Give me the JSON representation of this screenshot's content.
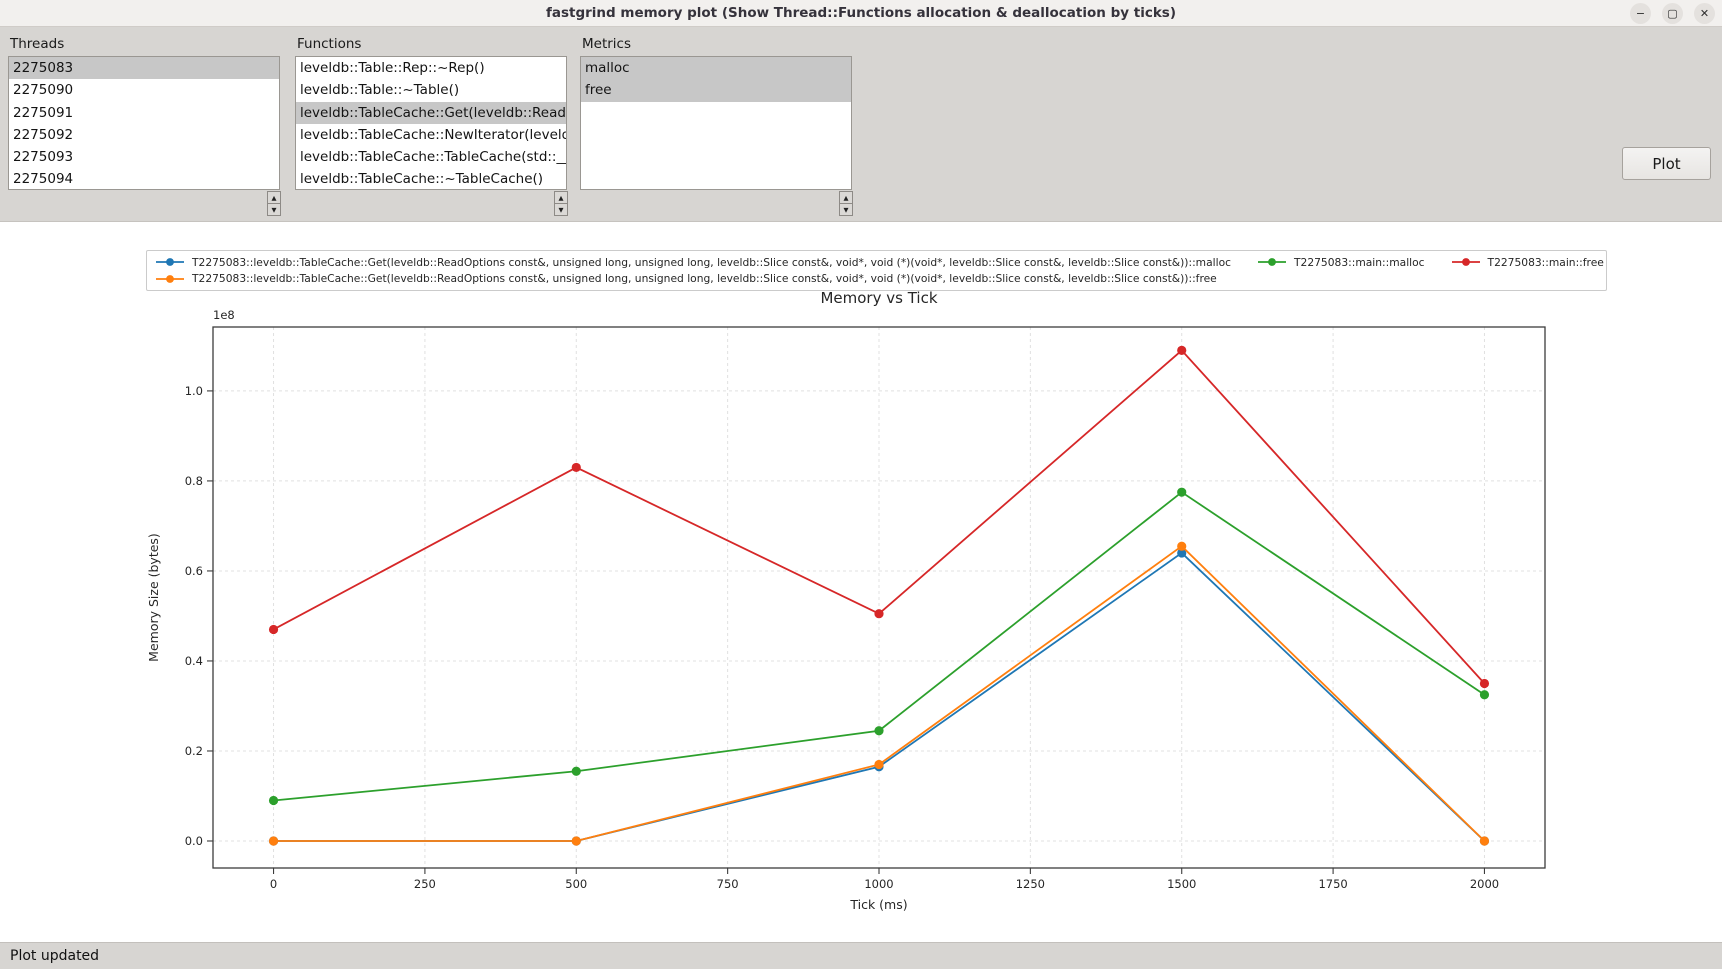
{
  "window": {
    "title": "fastgrind memory plot (Show Thread::Functions allocation & deallocation by ticks)",
    "icons": {
      "minimize": "−",
      "maximize": "▢",
      "close": "✕"
    }
  },
  "icons": {
    "scroll_up": "▲",
    "scroll_down": "▼"
  },
  "panels": {
    "threads": {
      "label": "Threads",
      "items": [
        {
          "text": "2275083",
          "selected": true
        },
        {
          "text": "2275090",
          "selected": false
        },
        {
          "text": "2275091",
          "selected": false
        },
        {
          "text": "2275092",
          "selected": false
        },
        {
          "text": "2275093",
          "selected": false
        },
        {
          "text": "2275094",
          "selected": false
        }
      ]
    },
    "functions": {
      "label": "Functions",
      "items": [
        {
          "text": "leveldb::Table::Rep::~Rep()",
          "selected": false
        },
        {
          "text": "leveldb::Table::~Table()",
          "selected": false
        },
        {
          "text": "leveldb::TableCache::Get(leveldb::ReadOptions const&, unsigned long, unsigned long, leveldb::Slice const&, void*, void (*)(void*, leveldb::Slice const&, leveldb::Slice const&))",
          "selected": true
        },
        {
          "text": "leveldb::TableCache::NewIterator(leveldb",
          "selected": false
        },
        {
          "text": "leveldb::TableCache::TableCache(std::__c",
          "selected": false
        },
        {
          "text": "leveldb::TableCache::~TableCache()",
          "selected": false
        }
      ]
    },
    "metrics": {
      "label": "Metrics",
      "items": [
        {
          "text": "malloc",
          "selected": true
        },
        {
          "text": "free",
          "selected": true
        }
      ]
    }
  },
  "plot_button": {
    "label": "Plot"
  },
  "status_bar": {
    "text": "Plot updated"
  },
  "chart_data": {
    "type": "line",
    "title": "Memory vs Tick",
    "xlabel": "Tick (ms)",
    "ylabel": "Memory Size (bytes)",
    "y_offset_label": "1e8",
    "grid": true,
    "legend_position": "top",
    "x": [
      0,
      500,
      1000,
      1500,
      2000
    ],
    "series": [
      {
        "name": "T2275083::leveldb::TableCache::Get(leveldb::ReadOptions const&, unsigned long, unsigned long, leveldb::Slice const&, void*, void (*)(void*, leveldb::Slice const&, leveldb::Slice const&))::malloc",
        "color": "#1f77b4",
        "values": [
          0,
          0,
          16500000,
          64000000,
          0
        ]
      },
      {
        "name": "T2275083::leveldb::TableCache::Get(leveldb::ReadOptions const&, unsigned long, unsigned long, leveldb::Slice const&, void*, void (*)(void*, leveldb::Slice const&, leveldb::Slice const&))::free",
        "color": "#ff7f0e",
        "values": [
          0,
          0,
          17000000,
          65500000,
          0
        ]
      },
      {
        "name": "T2275083::main::malloc",
        "color": "#2ca02c",
        "values": [
          9000000,
          15500000,
          24500000,
          77500000,
          32500000
        ]
      },
      {
        "name": "T2275083::main::free",
        "color": "#d62728",
        "values": [
          47000000,
          83000000,
          50500000,
          109000000,
          35000000
        ]
      }
    ],
    "legend_rows": [
      [
        0,
        2,
        3
      ],
      [
        1
      ]
    ],
    "xlim": [
      -100,
      2100
    ],
    "ylim": [
      -6000000,
      114200000
    ],
    "xticks": [
      {
        "value": 0,
        "label": "0"
      },
      {
        "value": 250,
        "label": "250"
      },
      {
        "value": 500,
        "label": "500"
      },
      {
        "value": 750,
        "label": "750"
      },
      {
        "value": 1000,
        "label": "1000"
      },
      {
        "value": 1250,
        "label": "1250"
      },
      {
        "value": 1500,
        "label": "1500"
      },
      {
        "value": 1750,
        "label": "1750"
      },
      {
        "value": 2000,
        "label": "2000"
      }
    ],
    "yticks": [
      {
        "value": 0,
        "label": "0.0"
      },
      {
        "value": 20000000,
        "label": "0.2"
      },
      {
        "value": 40000000,
        "label": "0.4"
      },
      {
        "value": 60000000,
        "label": "0.6"
      },
      {
        "value": 80000000,
        "label": "0.8"
      },
      {
        "value": 100000000,
        "label": "1.0"
      }
    ]
  }
}
